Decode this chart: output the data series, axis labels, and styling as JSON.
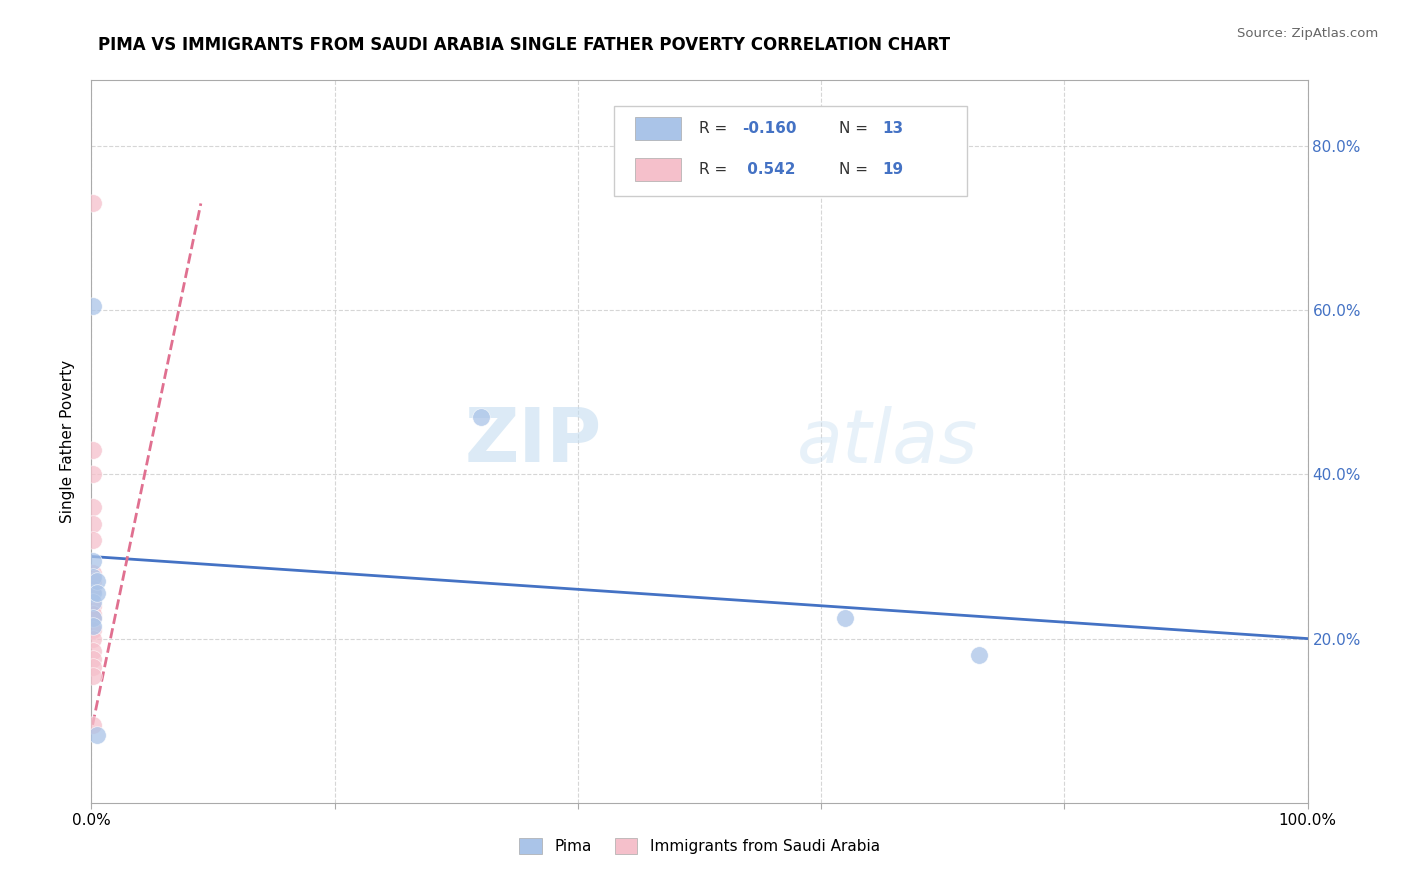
{
  "title": "PIMA VS IMMIGRANTS FROM SAUDI ARABIA SINGLE FATHER POVERTY CORRELATION CHART",
  "source": "Source: ZipAtlas.com",
  "ylabel": "Single Father Poverty",
  "xlim": [
    0.0,
    1.0
  ],
  "ylim": [
    0.0,
    0.88
  ],
  "xticks": [
    0.0,
    0.2,
    0.4,
    0.6,
    0.8,
    1.0
  ],
  "xticklabels": [
    "0.0%",
    "",
    "",
    "",
    "",
    "100.0%"
  ],
  "yticks": [
    0.2,
    0.4,
    0.6,
    0.8
  ],
  "yticklabels": [
    "20.0%",
    "40.0%",
    "60.0%",
    "80.0%"
  ],
  "pima_color": "#aac4e8",
  "saudi_color": "#f5c0cb",
  "pima_line_color": "#4472c4",
  "saudi_line_color": "#e07090",
  "pima_R": -0.16,
  "pima_N": 13,
  "saudi_R": 0.542,
  "saudi_N": 19,
  "watermark_zip": "ZIP",
  "watermark_atlas": "atlas",
  "pima_x": [
    0.001,
    0.001,
    0.001,
    0.001,
    0.001,
    0.001,
    0.001,
    0.62,
    0.73,
    0.32,
    0.005,
    0.005,
    0.005
  ],
  "pima_y": [
    0.605,
    0.295,
    0.275,
    0.255,
    0.245,
    0.225,
    0.215,
    0.225,
    0.18,
    0.47,
    0.27,
    0.255,
    0.083
  ],
  "saudi_x": [
    0.001,
    0.001,
    0.001,
    0.001,
    0.001,
    0.001,
    0.001,
    0.001,
    0.001,
    0.001,
    0.001,
    0.001,
    0.001,
    0.001,
    0.001,
    0.001,
    0.001,
    0.001,
    0.001
  ],
  "saudi_y": [
    0.73,
    0.43,
    0.4,
    0.36,
    0.34,
    0.32,
    0.28,
    0.27,
    0.26,
    0.24,
    0.23,
    0.225,
    0.21,
    0.2,
    0.185,
    0.175,
    0.165,
    0.155,
    0.095
  ],
  "pima_line_x0": 0.0,
  "pima_line_x1": 1.0,
  "pima_line_y0": 0.3,
  "pima_line_y1": 0.2,
  "saudi_line_x0": 0.001,
  "saudi_line_x1": 0.09,
  "saudi_line_y0": 0.095,
  "saudi_line_y1": 0.73
}
